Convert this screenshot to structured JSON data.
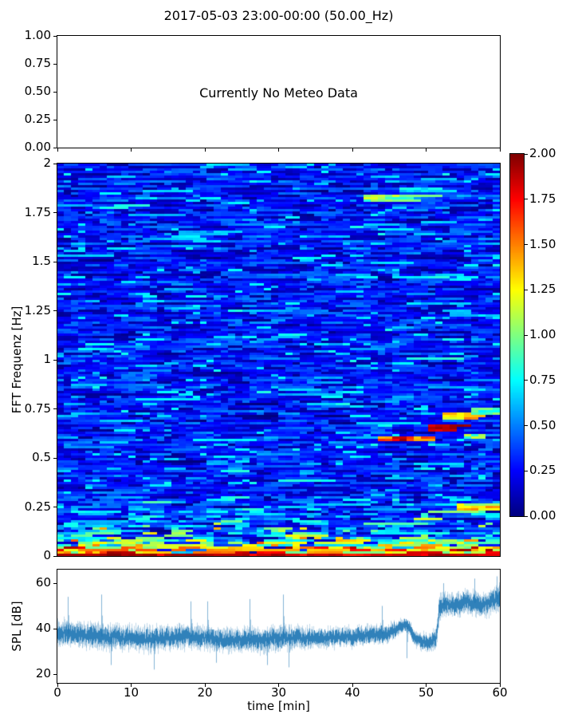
{
  "figure": {
    "title": "2017-05-03 23:00-00:00 (50.00_Hz)",
    "background_color": "#ffffff",
    "axis_color": "#000000"
  },
  "meteo_panel": {
    "message": "Currently No Meteo Data",
    "ytick_labels": [
      "1.00",
      "0.75",
      "0.50",
      "0.25",
      "0.00"
    ]
  },
  "spectrogram_panel": {
    "ylabel": "FFT Frequenz [Hz]",
    "ytick_labels": [
      "2",
      "1.75",
      "1.5",
      "1.25",
      "1",
      "0.75",
      "0.5",
      "0.25",
      "0"
    ]
  },
  "colorbar": {
    "tick_labels": [
      "2.00",
      "1.75",
      "1.50",
      "1.25",
      "1.00",
      "0.75",
      "0.50",
      "0.25",
      "0.00"
    ],
    "cmap": "jet"
  },
  "spl_panel": {
    "ylabel": "SPL [dB]",
    "xlabel": "time [min]",
    "ytick_labels": [
      "60",
      "40",
      "20"
    ],
    "xtick_labels": [
      "0",
      "10",
      "20",
      "30",
      "40",
      "50",
      "60"
    ],
    "line_color": "#1f77b4"
  },
  "chart_data": [
    {
      "type": "line",
      "panel": "meteo",
      "title": "2017-05-03 23:00-00:00 (50.00_Hz)",
      "annotation": "Currently No Meteo Data",
      "x": [],
      "series": [],
      "xlim": [
        0,
        60
      ],
      "ylim": [
        0,
        1
      ],
      "yticks": [
        1.0,
        0.75,
        0.5,
        0.25,
        0.0
      ],
      "xticks": [
        0,
        10,
        20,
        30,
        40,
        50,
        60
      ],
      "xtick_labels_shown": false,
      "grid": false
    },
    {
      "type": "heatmap",
      "panel": "spectrogram",
      "ylabel": "FFT Frequenz [Hz]",
      "xlim": [
        0,
        60
      ],
      "ylim": [
        0,
        2
      ],
      "yticks": [
        2,
        1.75,
        1.5,
        1.25,
        1,
        0.75,
        0.5,
        0.25,
        0
      ],
      "value_range": [
        0,
        2
      ],
      "cmap": "jet",
      "colorbar_ticks": [
        2.0,
        1.75,
        1.5,
        1.25,
        1.0,
        0.75,
        0.5,
        0.25,
        0.0
      ],
      "grid_cells": {
        "cols": 62,
        "rows": 164
      },
      "noise_model": {
        "seed": 1337,
        "description": "mostly dark/medium blue field (0.05-0.5) with random cyan flecks (0.5-0.8); horizontal run-length streaks",
        "run_keep_probability": 0.5,
        "lowfreq_boost": {
          "below_hz": 0.32,
          "strong_before_min": 35,
          "strong_after_min": 48,
          "early_gain": 1.0,
          "late_gain": 0.85,
          "mid_gain": 0.45
        },
        "hot_band": {
          "below_hz": 0.05,
          "min": 0.9,
          "max": 2.0
        },
        "bottom_band": {
          "below_hz": 0.018,
          "min": 1.7,
          "max": 2.0
        }
      },
      "features": [
        {
          "name": "rising-tone-seg1",
          "t0": 44.0,
          "t1": 50.5,
          "f0": 0.585,
          "f1": 0.615,
          "vmin": 1.3,
          "vmax": 2.0
        },
        {
          "name": "rising-tone-seg2",
          "t0": 50.5,
          "t1": 54.2,
          "f0": 0.635,
          "f1": 0.675,
          "vmin": 1.8,
          "vmax": 2.0
        },
        {
          "name": "rising-tone-seg3",
          "t0": 52.5,
          "t1": 56.5,
          "f0": 0.7,
          "f1": 0.735,
          "vmin": 1.1,
          "vmax": 1.7
        },
        {
          "name": "rising-tone-tail",
          "t0": 56.0,
          "t1": 60.0,
          "f0": 0.725,
          "f1": 0.76,
          "vmin": 0.7,
          "vmax": 1.1
        },
        {
          "name": "cyan-tail-right",
          "t0": 55.0,
          "t1": 58.5,
          "f0": 0.6,
          "f1": 0.625,
          "vmin": 0.8,
          "vmax": 1.2
        },
        {
          "name": "streak-1p8hz",
          "t0": 42.0,
          "t1": 47.0,
          "f0": 1.8,
          "f1": 1.84,
          "vmin": 0.8,
          "vmax": 1.2
        },
        {
          "name": "streak-1p87hz",
          "t0": 46.5,
          "t1": 51.0,
          "f0": 1.85,
          "f1": 1.88,
          "vmin": 0.6,
          "vmax": 0.85
        },
        {
          "name": "orange-0p25hz",
          "t0": 54.5,
          "t1": 59.0,
          "f0": 0.235,
          "f1": 0.27,
          "vmin": 1.0,
          "vmax": 1.5
        }
      ]
    },
    {
      "type": "line",
      "panel": "spl",
      "ylabel": "SPL [dB]",
      "xlabel": "time [min]",
      "xlim": [
        0,
        60
      ],
      "ylim": [
        16,
        66
      ],
      "yticks": [
        60,
        40,
        20
      ],
      "xticks": [
        0,
        10,
        20,
        30,
        40,
        50,
        60
      ],
      "series": [
        {
          "name": "SPL",
          "color": "#1f77b4",
          "noise_seed": 42,
          "envelope_t_mean_spread": [
            [
              0,
              38,
              7
            ],
            [
              3,
              37.5,
              6.5
            ],
            [
              6,
              36.5,
              7
            ],
            [
              9,
              36,
              6
            ],
            [
              12,
              35.5,
              6.5
            ],
            [
              15,
              36,
              6
            ],
            [
              18,
              36.5,
              6.5
            ],
            [
              21,
              35.5,
              6
            ],
            [
              24,
              35,
              6
            ],
            [
              27,
              35,
              6.5
            ],
            [
              30,
              36,
              6.5
            ],
            [
              33,
              36,
              5.5
            ],
            [
              36,
              36,
              5
            ],
            [
              39,
              36.5,
              5
            ],
            [
              42,
              37,
              5
            ],
            [
              45,
              38,
              4.5
            ],
            [
              46.8,
              41.5,
              3.5
            ],
            [
              47.6,
              41,
              3.5
            ],
            [
              48.3,
              36,
              4
            ],
            [
              49,
              34.5,
              4
            ],
            [
              50.5,
              34,
              4.5
            ],
            [
              51.3,
              36,
              6
            ],
            [
              51.8,
              49,
              7
            ],
            [
              52.5,
              51,
              6
            ],
            [
              54,
              50,
              6
            ],
            [
              55.5,
              52,
              6
            ],
            [
              57,
              51,
              6
            ],
            [
              58,
              50.5,
              6.5
            ],
            [
              59,
              52.5,
              7
            ],
            [
              60,
              53,
              7
            ]
          ],
          "spikes_t_value": [
            [
              1.4,
              54
            ],
            [
              5.9,
              55
            ],
            [
              7.2,
              24
            ],
            [
              13.1,
              22
            ],
            [
              18,
              52
            ],
            [
              20.3,
              52
            ],
            [
              21.5,
              25
            ],
            [
              26,
              53
            ],
            [
              28.4,
              24
            ],
            [
              30.6,
              55
            ],
            [
              31.4,
              23
            ],
            [
              44,
              50
            ],
            [
              47.3,
              27
            ],
            [
              52.3,
              60
            ],
            [
              56.5,
              62
            ],
            [
              59.6,
              63
            ]
          ]
        }
      ]
    }
  ]
}
